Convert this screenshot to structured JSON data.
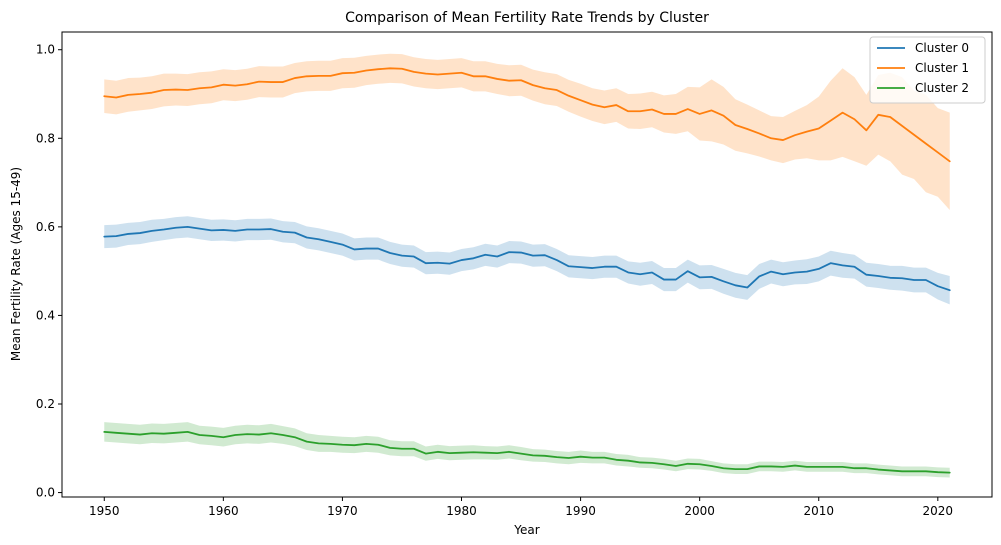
{
  "chart_data": {
    "type": "line",
    "title": "Comparison of Mean Fertility Rate Trends by Cluster",
    "xlabel": "Year",
    "ylabel": "Mean Fertility Rate (Ages 15-49)",
    "xlim": [
      1946.45,
      2024.55
    ],
    "ylim": [
      -0.01,
      1.04
    ],
    "xticks": [
      1950,
      1960,
      1970,
      1980,
      1990,
      2000,
      2010,
      2020
    ],
    "yticks": [
      0.0,
      0.2,
      0.4,
      0.6,
      0.8,
      1.0
    ],
    "ytick_labels": [
      "0.0",
      "0.2",
      "0.4",
      "0.6",
      "0.8",
      "1.0"
    ],
    "grid": false,
    "legend_position": "top-right",
    "confidence_band": true,
    "x": [
      1950,
      1951,
      1952,
      1953,
      1954,
      1955,
      1956,
      1957,
      1958,
      1959,
      1960,
      1961,
      1962,
      1963,
      1964,
      1965,
      1966,
      1967,
      1968,
      1969,
      1970,
      1971,
      1972,
      1973,
      1974,
      1975,
      1976,
      1977,
      1978,
      1979,
      1980,
      1981,
      1982,
      1983,
      1984,
      1985,
      1986,
      1987,
      1988,
      1989,
      1990,
      1991,
      1992,
      1993,
      1994,
      1995,
      1996,
      1997,
      1998,
      1999,
      2000,
      2001,
      2002,
      2003,
      2004,
      2005,
      2006,
      2007,
      2008,
      2009,
      2010,
      2011,
      2012,
      2013,
      2014,
      2015,
      2016,
      2017,
      2018,
      2019,
      2020,
      2021
    ],
    "series": [
      {
        "name": "Cluster 0",
        "color": "#1f77b4",
        "band_color": "#1f77b4",
        "values": [
          0.578,
          0.579,
          0.584,
          0.586,
          0.591,
          0.594,
          0.598,
          0.6,
          0.596,
          0.592,
          0.593,
          0.591,
          0.594,
          0.594,
          0.595,
          0.589,
          0.587,
          0.576,
          0.572,
          0.566,
          0.56,
          0.549,
          0.551,
          0.551,
          0.541,
          0.535,
          0.533,
          0.518,
          0.519,
          0.517,
          0.525,
          0.529,
          0.537,
          0.533,
          0.543,
          0.542,
          0.535,
          0.536,
          0.525,
          0.511,
          0.509,
          0.507,
          0.51,
          0.51,
          0.497,
          0.493,
          0.497,
          0.481,
          0.481,
          0.5,
          0.486,
          0.487,
          0.477,
          0.468,
          0.463,
          0.488,
          0.499,
          0.493,
          0.497,
          0.499,
          0.505,
          0.518,
          0.513,
          0.51,
          0.492,
          0.489,
          0.485,
          0.484,
          0.48,
          0.48,
          0.466,
          0.457
        ],
        "band_half_width": [
          0.026,
          0.026,
          0.025,
          0.025,
          0.025,
          0.024,
          0.024,
          0.024,
          0.024,
          0.024,
          0.024,
          0.024,
          0.024,
          0.024,
          0.024,
          0.024,
          0.024,
          0.025,
          0.025,
          0.025,
          0.025,
          0.025,
          0.025,
          0.025,
          0.025,
          0.025,
          0.025,
          0.025,
          0.025,
          0.025,
          0.025,
          0.025,
          0.025,
          0.025,
          0.025,
          0.025,
          0.025,
          0.025,
          0.025,
          0.025,
          0.025,
          0.025,
          0.025,
          0.025,
          0.025,
          0.026,
          0.026,
          0.026,
          0.026,
          0.026,
          0.027,
          0.027,
          0.028,
          0.028,
          0.028,
          0.028,
          0.027,
          0.027,
          0.027,
          0.028,
          0.028,
          0.028,
          0.028,
          0.027,
          0.027,
          0.027,
          0.027,
          0.028,
          0.028,
          0.028,
          0.03,
          0.032
        ]
      },
      {
        "name": "Cluster 1",
        "color": "#ff7f0e",
        "band_color": "#ff7f0e",
        "values": [
          0.895,
          0.892,
          0.898,
          0.9,
          0.903,
          0.909,
          0.91,
          0.909,
          0.913,
          0.915,
          0.921,
          0.919,
          0.922,
          0.928,
          0.927,
          0.927,
          0.936,
          0.94,
          0.941,
          0.941,
          0.947,
          0.948,
          0.953,
          0.956,
          0.958,
          0.957,
          0.95,
          0.946,
          0.944,
          0.946,
          0.948,
          0.94,
          0.94,
          0.934,
          0.93,
          0.931,
          0.92,
          0.913,
          0.909,
          0.896,
          0.886,
          0.876,
          0.87,
          0.875,
          0.861,
          0.861,
          0.865,
          0.855,
          0.855,
          0.866,
          0.855,
          0.863,
          0.851,
          0.83,
          0.821,
          0.811,
          0.8,
          0.796,
          0.807,
          0.815,
          0.822,
          0.84,
          0.858,
          0.843,
          0.818,
          0.853,
          0.848,
          0.828,
          0.808,
          0.788,
          0.768,
          0.748
        ],
        "band_half_width": [
          0.038,
          0.038,
          0.038,
          0.037,
          0.037,
          0.037,
          0.036,
          0.036,
          0.036,
          0.036,
          0.035,
          0.035,
          0.035,
          0.035,
          0.035,
          0.035,
          0.034,
          0.034,
          0.034,
          0.034,
          0.034,
          0.034,
          0.033,
          0.033,
          0.033,
          0.033,
          0.033,
          0.033,
          0.033,
          0.033,
          0.033,
          0.034,
          0.034,
          0.034,
          0.035,
          0.035,
          0.035,
          0.036,
          0.036,
          0.036,
          0.037,
          0.037,
          0.038,
          0.038,
          0.039,
          0.04,
          0.04,
          0.042,
          0.045,
          0.05,
          0.06,
          0.07,
          0.065,
          0.058,
          0.055,
          0.052,
          0.05,
          0.052,
          0.055,
          0.06,
          0.072,
          0.09,
          0.1,
          0.095,
          0.08,
          0.09,
          0.1,
          0.11,
          0.1,
          0.11,
          0.1,
          0.11
        ]
      },
      {
        "name": "Cluster 2",
        "color": "#2ca02c",
        "band_color": "#2ca02c",
        "values": [
          0.137,
          0.135,
          0.133,
          0.131,
          0.134,
          0.133,
          0.135,
          0.137,
          0.13,
          0.128,
          0.125,
          0.13,
          0.132,
          0.131,
          0.134,
          0.13,
          0.125,
          0.115,
          0.111,
          0.11,
          0.108,
          0.107,
          0.11,
          0.108,
          0.101,
          0.099,
          0.099,
          0.088,
          0.092,
          0.089,
          0.09,
          0.091,
          0.09,
          0.089,
          0.092,
          0.088,
          0.084,
          0.083,
          0.08,
          0.078,
          0.081,
          0.079,
          0.079,
          0.074,
          0.072,
          0.068,
          0.067,
          0.064,
          0.06,
          0.065,
          0.064,
          0.06,
          0.055,
          0.053,
          0.053,
          0.059,
          0.059,
          0.058,
          0.061,
          0.058,
          0.058,
          0.058,
          0.058,
          0.055,
          0.055,
          0.052,
          0.05,
          0.048,
          0.048,
          0.048,
          0.046,
          0.045
        ],
        "band_half_width": [
          0.022,
          0.022,
          0.022,
          0.022,
          0.022,
          0.022,
          0.022,
          0.022,
          0.021,
          0.021,
          0.021,
          0.021,
          0.021,
          0.021,
          0.021,
          0.02,
          0.02,
          0.019,
          0.019,
          0.018,
          0.018,
          0.018,
          0.018,
          0.018,
          0.017,
          0.017,
          0.017,
          0.016,
          0.016,
          0.016,
          0.016,
          0.016,
          0.015,
          0.015,
          0.015,
          0.015,
          0.014,
          0.014,
          0.014,
          0.014,
          0.014,
          0.013,
          0.013,
          0.013,
          0.013,
          0.012,
          0.012,
          0.012,
          0.012,
          0.012,
          0.012,
          0.011,
          0.011,
          0.011,
          0.011,
          0.011,
          0.011,
          0.011,
          0.011,
          0.011,
          0.011,
          0.011,
          0.011,
          0.011,
          0.011,
          0.011,
          0.011,
          0.011,
          0.011,
          0.011,
          0.011,
          0.011
        ]
      }
    ]
  }
}
